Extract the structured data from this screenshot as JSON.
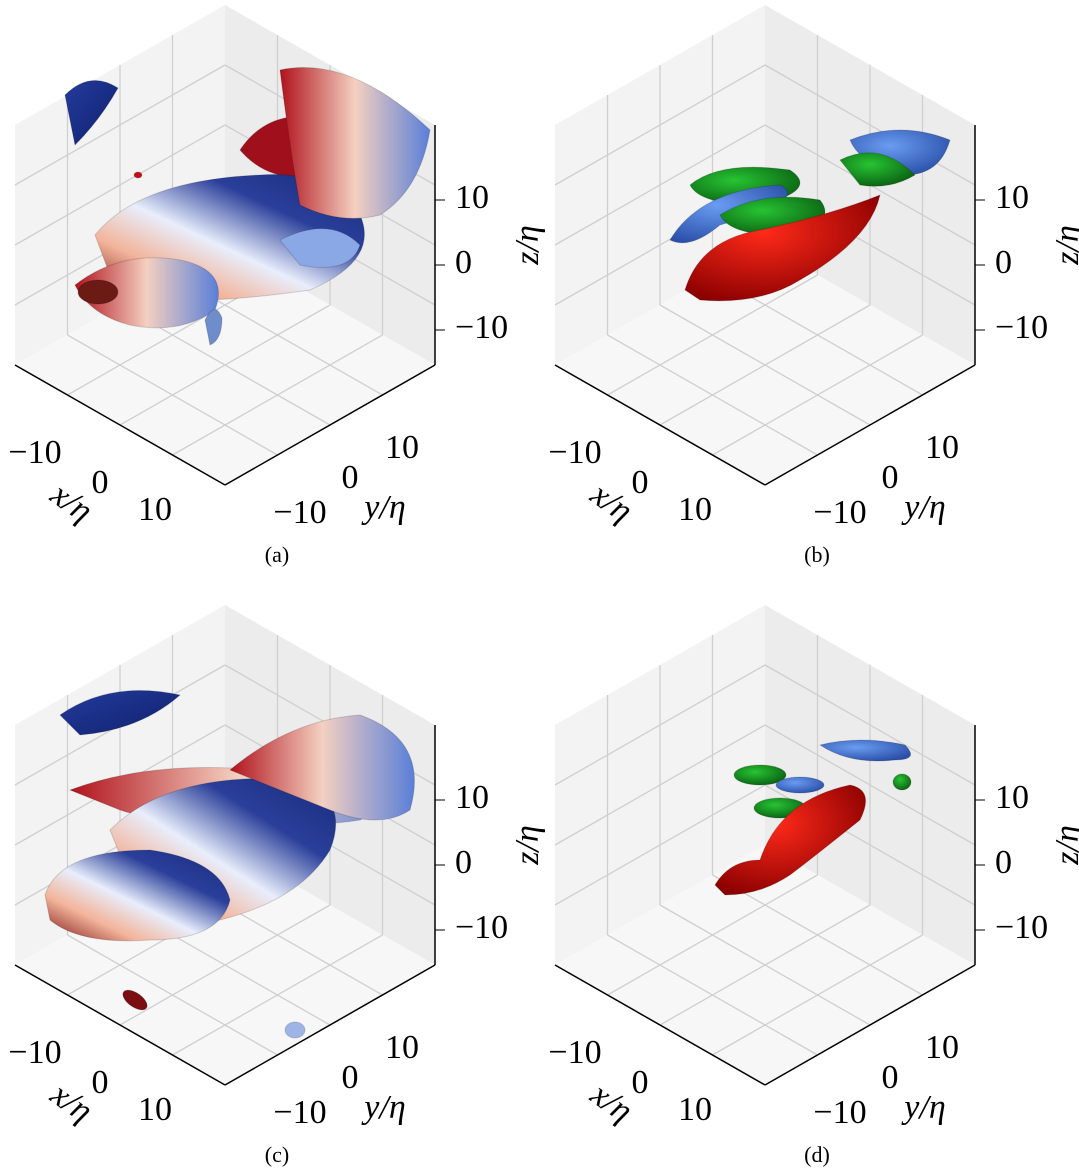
{
  "panels": [
    {
      "caption": "(a)",
      "x_label": "x/η",
      "y_label": "y/η",
      "z_label": "z/η",
      "x_ticks": [
        "−10",
        "0",
        "10"
      ],
      "y_ticks": [
        "−10",
        "0",
        "10"
      ],
      "z_ticks": [
        "−10",
        "0",
        "10"
      ]
    },
    {
      "caption": "(b)",
      "x_label": "x/η",
      "y_label": "y/η",
      "z_label": "z/η",
      "x_ticks": [
        "−10",
        "0",
        "10"
      ],
      "y_ticks": [
        "−10",
        "0",
        "10"
      ],
      "z_ticks": [
        "−10",
        "0",
        "10"
      ]
    },
    {
      "caption": "(c)",
      "x_label": "x/η",
      "y_label": "y/η",
      "z_label": "z/η",
      "x_ticks": [
        "−10",
        "0",
        "10"
      ],
      "y_ticks": [
        "−10",
        "0",
        "10"
      ],
      "z_ticks": [
        "−10",
        "0",
        "10"
      ]
    },
    {
      "caption": "(d)",
      "x_label": "x/η",
      "y_label": "y/η",
      "z_label": "z/η",
      "x_ticks": [
        "−10",
        "0",
        "10"
      ],
      "y_ticks": [
        "−10",
        "0",
        "10"
      ],
      "z_ticks": [
        "−10",
        "0",
        "10"
      ]
    }
  ]
}
